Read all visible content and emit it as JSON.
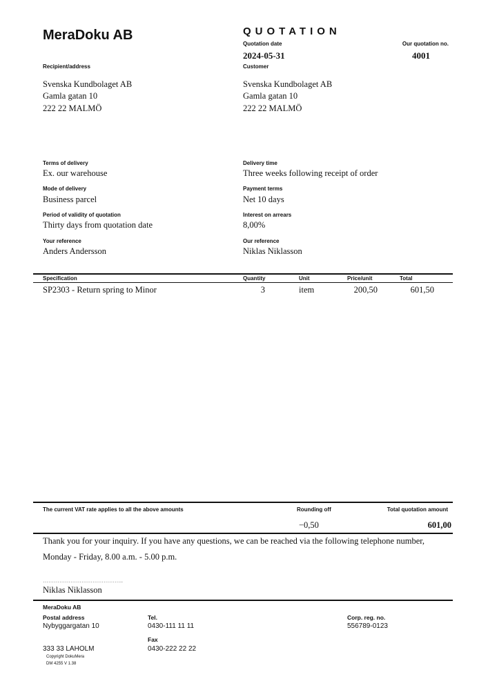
{
  "header": {
    "company": "MeraDoku AB",
    "doc_title": "QUOTATION",
    "quotation_date_label": "Quotation date",
    "quotation_date": "2024-05-31",
    "quotation_no_label": "Our quotation no.",
    "quotation_no": "4001"
  },
  "recipient": {
    "label": "Recipient/address",
    "lines": [
      "Svenska Kundbolaget AB",
      "Gamla gatan 10",
      "222 22 MALMÖ"
    ]
  },
  "customer": {
    "label": "Customer",
    "lines": [
      "Svenska Kundbolaget AB",
      "Gamla gatan 10",
      "222 22 MALMÖ"
    ]
  },
  "terms": [
    {
      "label": "Terms of delivery",
      "value": "Ex. our warehouse"
    },
    {
      "label": "Delivery time",
      "value": "Three weeks following receipt of order"
    },
    {
      "label": "Mode of delivery",
      "value": "Business parcel"
    },
    {
      "label": "Payment terms",
      "value": "Net 10 days"
    },
    {
      "label": "Period of validity of quotation",
      "value": "Thirty days from quotation date"
    },
    {
      "label": "Interest on arrears",
      "value": "8,00%"
    },
    {
      "label": "Your reference",
      "value": "Anders Andersson"
    },
    {
      "label": "Our reference",
      "value": "Niklas Niklasson"
    }
  ],
  "table": {
    "columns": [
      "Specification",
      "Quantity",
      "Unit",
      "Price/unit",
      "Total"
    ],
    "rows": [
      {
        "specification": "SP2303 - Return spring to Minor",
        "quantity": "3",
        "unit": "item",
        "price": "200,50",
        "total": "601,50"
      }
    ]
  },
  "summary": {
    "vat_note": "The current VAT rate applies to all the above amounts",
    "rounding_label": "Rounding off",
    "rounding_value": "−0,50",
    "total_label": "Total quotation amount",
    "total_value": "601,00"
  },
  "message": {
    "line1": "Thank you for your inquiry. If you have any questions, we can be reached via the following telephone number,",
    "line2": "Monday - Friday, 8.00 a.m. - 5.00 p.m.",
    "signature_dots": "……………………………………..",
    "signer": "Niklas Niklasson"
  },
  "footer": {
    "company": "MeraDoku AB",
    "postal_label": "Postal address",
    "postal_street": "Nybyggargatan 10",
    "postal_city": "333 33 LAHOLM",
    "tel_label": "Tel.",
    "tel": "0430-111 11 11",
    "fax_label": "Fax",
    "fax": "0430-222 22 22",
    "corp_label": "Corp. reg. no.",
    "corp": "556789-0123",
    "copyright": "Copyright DokuMera",
    "version": "DM 4255  V 1.38"
  }
}
